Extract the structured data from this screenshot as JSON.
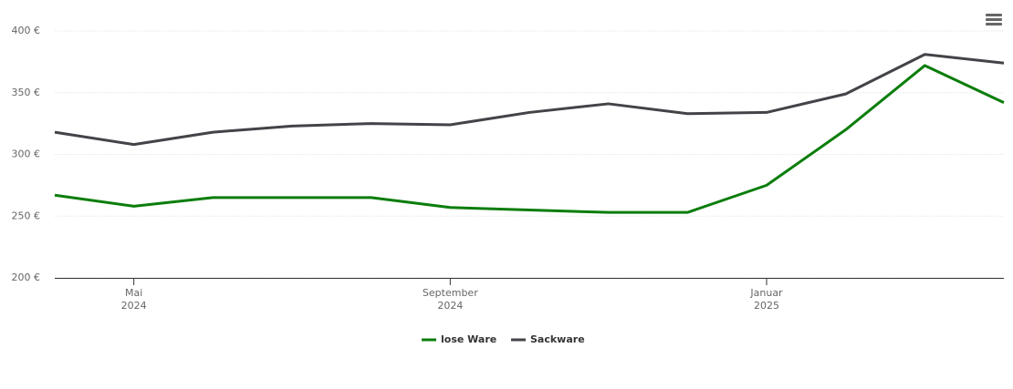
{
  "chart_data": {
    "type": "line",
    "x": [
      "2024-04",
      "2024-05",
      "2024-06",
      "2024-07",
      "2024-08",
      "2024-09",
      "2024-10",
      "2024-11",
      "2024-12",
      "2025-01",
      "2025-02",
      "2025-03",
      "2025-04"
    ],
    "series": [
      {
        "name": "lose Ware",
        "color": "#0b7d0b",
        "values": [
          267,
          258,
          265,
          265,
          265,
          257,
          255,
          253,
          253,
          275,
          320,
          372,
          342
        ]
      },
      {
        "name": "Sackware",
        "color": "#434348",
        "values": [
          318,
          308,
          318,
          323,
          325,
          324,
          334,
          341,
          333,
          334,
          349,
          381,
          374
        ]
      }
    ],
    "xlim": [
      "2024-04",
      "2025-04"
    ],
    "xticks": [
      {
        "value": "2024-05",
        "label": "Mai 2024"
      },
      {
        "value": "2024-09",
        "label": "September 2024"
      },
      {
        "value": "2025-01",
        "label": "Januar 2025"
      }
    ],
    "ylim": [
      200,
      400
    ],
    "yticks": [
      {
        "value": 200,
        "label": "200 €"
      },
      {
        "value": 250,
        "label": "250 €"
      },
      {
        "value": 300,
        "label": "300 €"
      },
      {
        "value": 350,
        "label": "350 €"
      },
      {
        "value": 400,
        "label": "400 €"
      }
    ],
    "grid": true,
    "legend": "bottom"
  }
}
